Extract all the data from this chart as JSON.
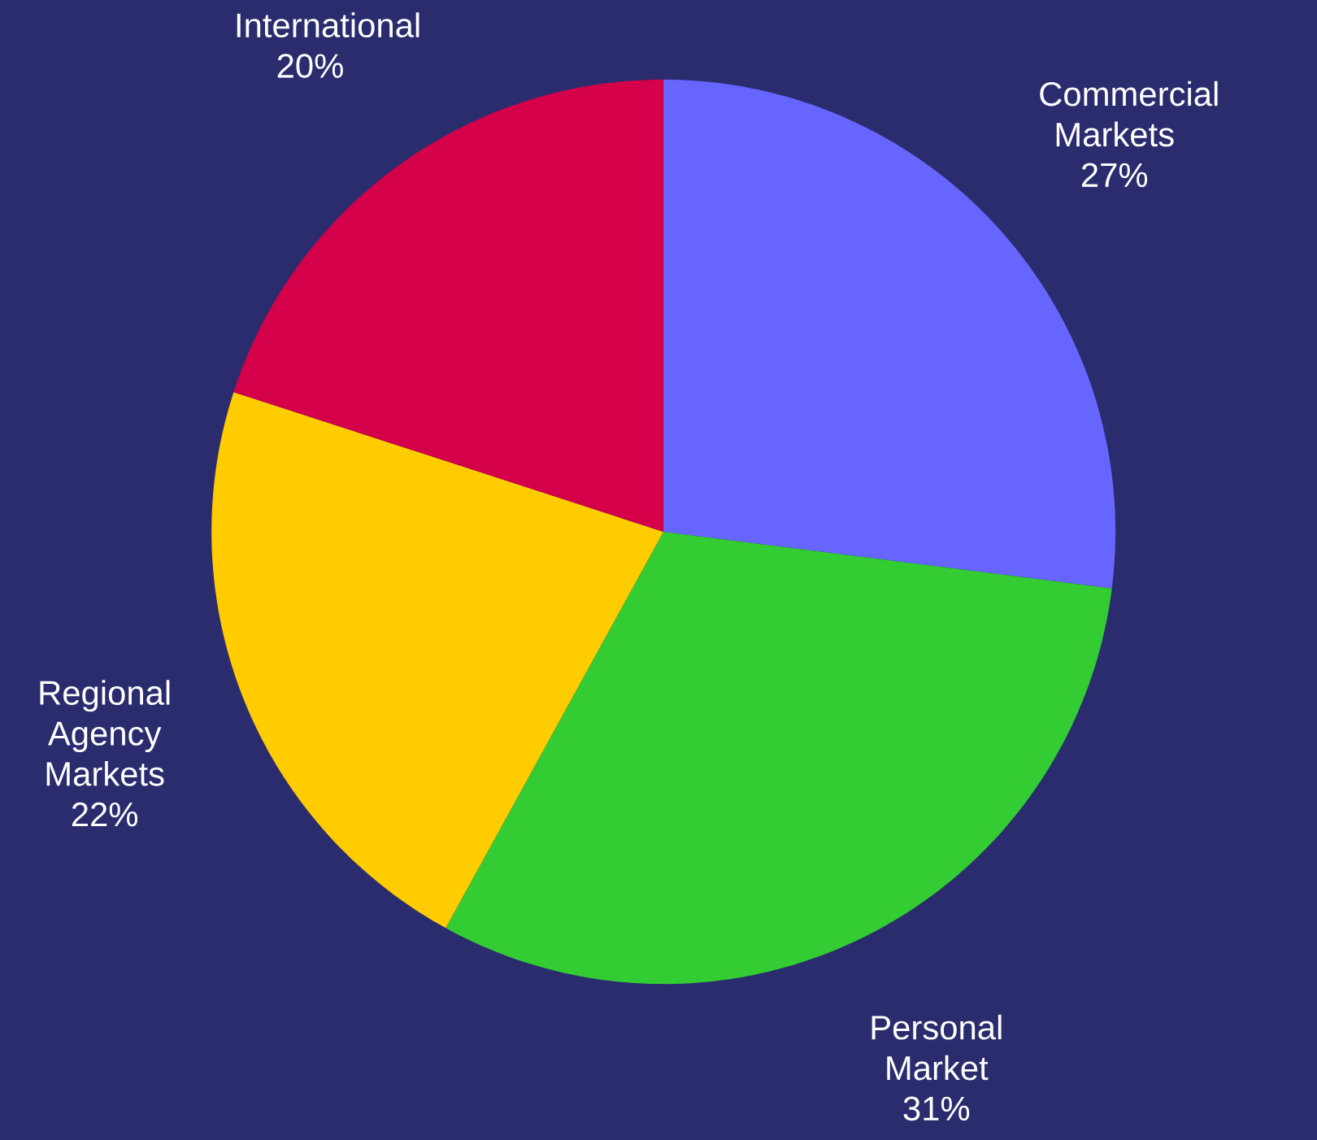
{
  "chart_data": {
    "type": "pie",
    "categories": [
      "Commercial Markets",
      "Personal Market",
      "Regional Agency Markets",
      "International"
    ],
    "values": [
      27,
      31,
      22,
      20
    ],
    "value_labels": [
      "27%",
      "31%",
      "22%",
      "20%"
    ],
    "colors": [
      "#6666ff",
      "#33cc33",
      "#ffcc00",
      "#d4004a"
    ]
  }
}
